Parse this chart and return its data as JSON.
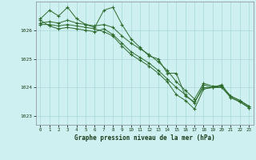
{
  "title": "Graphe pression niveau de la mer (hPa)",
  "bg_color": "#cff0f0",
  "grid_color": "#a8d8d8",
  "line_color": "#2d6b2d",
  "xlim": [
    -0.5,
    23.5
  ],
  "ylim": [
    1022.7,
    1027.0
  ],
  "yticks": [
    1023,
    1024,
    1025,
    1026
  ],
  "xticks": [
    0,
    1,
    2,
    3,
    4,
    5,
    6,
    7,
    8,
    9,
    10,
    11,
    12,
    13,
    14,
    15,
    16,
    17,
    18,
    19,
    20,
    21,
    22,
    23
  ],
  "series": [
    [
      1026.4,
      1026.7,
      1026.5,
      1026.8,
      1026.4,
      1026.2,
      1026.1,
      1026.7,
      1026.8,
      1026.2,
      1025.7,
      1025.4,
      1025.1,
      1025.0,
      1024.5,
      1024.5,
      1023.7,
      1023.5,
      1024.0,
      1024.0,
      1024.05,
      1023.7,
      1023.55,
      1023.35
    ],
    [
      1026.25,
      1026.3,
      1026.25,
      1026.35,
      1026.25,
      1026.2,
      1026.15,
      1026.2,
      1026.1,
      1025.8,
      1025.55,
      1025.35,
      1025.15,
      1024.9,
      1024.6,
      1024.2,
      1023.9,
      1023.6,
      1024.15,
      1024.05,
      1024.05,
      1023.7,
      1023.55,
      1023.35
    ],
    [
      1026.35,
      1026.15,
      1026.05,
      1026.1,
      1026.05,
      1026.0,
      1025.95,
      1026.05,
      1025.85,
      1025.55,
      1025.25,
      1025.05,
      1024.85,
      1024.6,
      1024.3,
      1024.0,
      1023.75,
      1023.45,
      1024.1,
      1024.0,
      1024.0,
      1023.65,
      1023.5,
      1023.3
    ],
    [
      1026.2,
      1026.2,
      1026.15,
      1026.2,
      1026.15,
      1026.1,
      1026.05,
      1025.95,
      1025.8,
      1025.45,
      1025.15,
      1024.95,
      1024.75,
      1024.5,
      1024.2,
      1023.75,
      1023.55,
      1023.25,
      1023.95,
      1024.0,
      1024.1,
      1023.65,
      1023.5,
      1023.3
    ]
  ]
}
